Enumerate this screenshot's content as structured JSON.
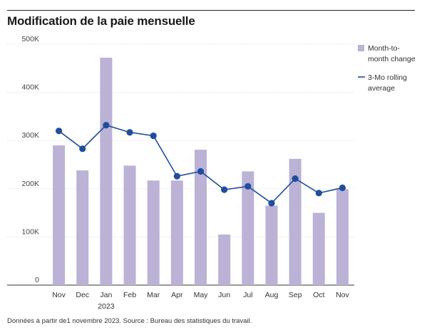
{
  "title": "Modification de la paie mensuelle",
  "footnote": "Données à partir de1 novembre 2023. Source : Bureau des statistiques du travail.",
  "chart_data": {
    "type": "bar",
    "categories": [
      "Nov",
      "Dec",
      "Jan",
      "Feb",
      "Mar",
      "Apr",
      "May",
      "Jun",
      "Jul",
      "Aug",
      "Sep",
      "Oct",
      "Nov"
    ],
    "year_label": "2023",
    "y_ticks": [
      0,
      100,
      200,
      300,
      400,
      500
    ],
    "y_tick_labels": [
      "0",
      "100K",
      "200K",
      "300K",
      "400K",
      "500K"
    ],
    "ylim": [
      0,
      500
    ],
    "series": [
      {
        "name": "Month-to-month change",
        "type": "bar",
        "color": "#bbb2d6",
        "values": [
          290,
          238,
          472,
          248,
          217,
          217,
          281,
          105,
          236,
          165,
          262,
          150,
          199
        ]
      },
      {
        "name": "3-Mo rolling average",
        "type": "line",
        "color": "#1f4e9c",
        "values": [
          320,
          283,
          332,
          317,
          310,
          226,
          236,
          198,
          205,
          170,
          221,
          191,
          202
        ]
      }
    ],
    "legend": [
      {
        "line1": "Month-to-",
        "line2": "month change"
      },
      {
        "line1": "3-Mo rolling",
        "line2": "average"
      }
    ],
    "legend_position": "right",
    "grid": true
  }
}
